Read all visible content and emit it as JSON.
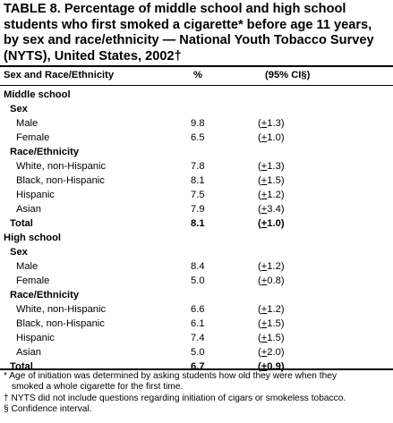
{
  "title": "TABLE 8. Percentage of middle school and high school students who first smoked a cigarette* before age 11 years, by sex and race/ethnicity — National Youth Tobacco Survey (NYTS), United States, 2002†",
  "columns": {
    "group": "Sex and Race/Ethnicity",
    "pct": "%",
    "ci": "(95% CI§)"
  },
  "rows": [
    {
      "label": "Middle school",
      "level": 0,
      "bold": true
    },
    {
      "label": "Sex",
      "level": 1,
      "bold": true
    },
    {
      "label": "Male",
      "level": 2,
      "pct": "9.8",
      "ci_open": "(",
      "ci_pm": "+",
      "ci_val": "1.3)"
    },
    {
      "label": "Female",
      "level": 2,
      "pct": "6.5",
      "ci_open": "(",
      "ci_pm": "+",
      "ci_val": "1.0)"
    },
    {
      "label": "Race/Ethnicity",
      "level": 1,
      "bold": true
    },
    {
      "label": "White, non-Hispanic",
      "level": 2,
      "pct": "7.8",
      "ci_open": "(",
      "ci_pm": "+",
      "ci_val": "1.3)"
    },
    {
      "label": "Black, non-Hispanic",
      "level": 2,
      "pct": "8.1",
      "ci_open": "(",
      "ci_pm": "+",
      "ci_val": "1.5)"
    },
    {
      "label": "Hispanic",
      "level": 2,
      "pct": "7.5",
      "ci_open": "(",
      "ci_pm": "+",
      "ci_val": "1.2)"
    },
    {
      "label": "Asian",
      "level": 2,
      "pct": "7.9",
      "ci_open": "(",
      "ci_pm": "+",
      "ci_val": "3.4)"
    },
    {
      "label": "Total",
      "level": 1,
      "bold": true,
      "pct": "8.1",
      "ci_open": "(",
      "ci_pm": "+",
      "ci_val": "1.0)"
    },
    {
      "label": "High school",
      "level": 0,
      "bold": true
    },
    {
      "label": "Sex",
      "level": 1,
      "bold": true
    },
    {
      "label": "Male",
      "level": 2,
      "pct": "8.4",
      "ci_open": "(",
      "ci_pm": "+",
      "ci_val": "1.2)"
    },
    {
      "label": "Female",
      "level": 2,
      "pct": "5.0",
      "ci_open": "(",
      "ci_pm": "+",
      "ci_val": "0.8)"
    },
    {
      "label": "Race/Ethnicity",
      "level": 1,
      "bold": true
    },
    {
      "label": "White, non-Hispanic",
      "level": 2,
      "pct": "6.6",
      "ci_open": "(",
      "ci_pm": "+",
      "ci_val": "1.2)"
    },
    {
      "label": "Black, non-Hispanic",
      "level": 2,
      "pct": "6.1",
      "ci_open": "(",
      "ci_pm": "+",
      "ci_val": "1.5)"
    },
    {
      "label": "Hispanic",
      "level": 2,
      "pct": "7.4",
      "ci_open": "(",
      "ci_pm": "+",
      "ci_val": "1.5)"
    },
    {
      "label": "Asian",
      "level": 2,
      "pct": "5.0",
      "ci_open": "(",
      "ci_pm": "+",
      "ci_val": "2.0)"
    },
    {
      "label": "Total",
      "level": 1,
      "bold": true,
      "pct": "6.7",
      "ci_open": "(",
      "ci_pm": "+",
      "ci_val": "0.9)"
    }
  ],
  "footnotes": [
    {
      "text": "* Age of initiation was determined by asking students how old they were when they",
      "indent": false
    },
    {
      "text": "smoked a whole cigarette for the first time.",
      "indent": true
    },
    {
      "text": "† NYTS did not include questions regarding initiation of cigars or smokeless tobacco.",
      "indent": false
    },
    {
      "text": "§ Confidence interval.",
      "indent": false
    }
  ]
}
